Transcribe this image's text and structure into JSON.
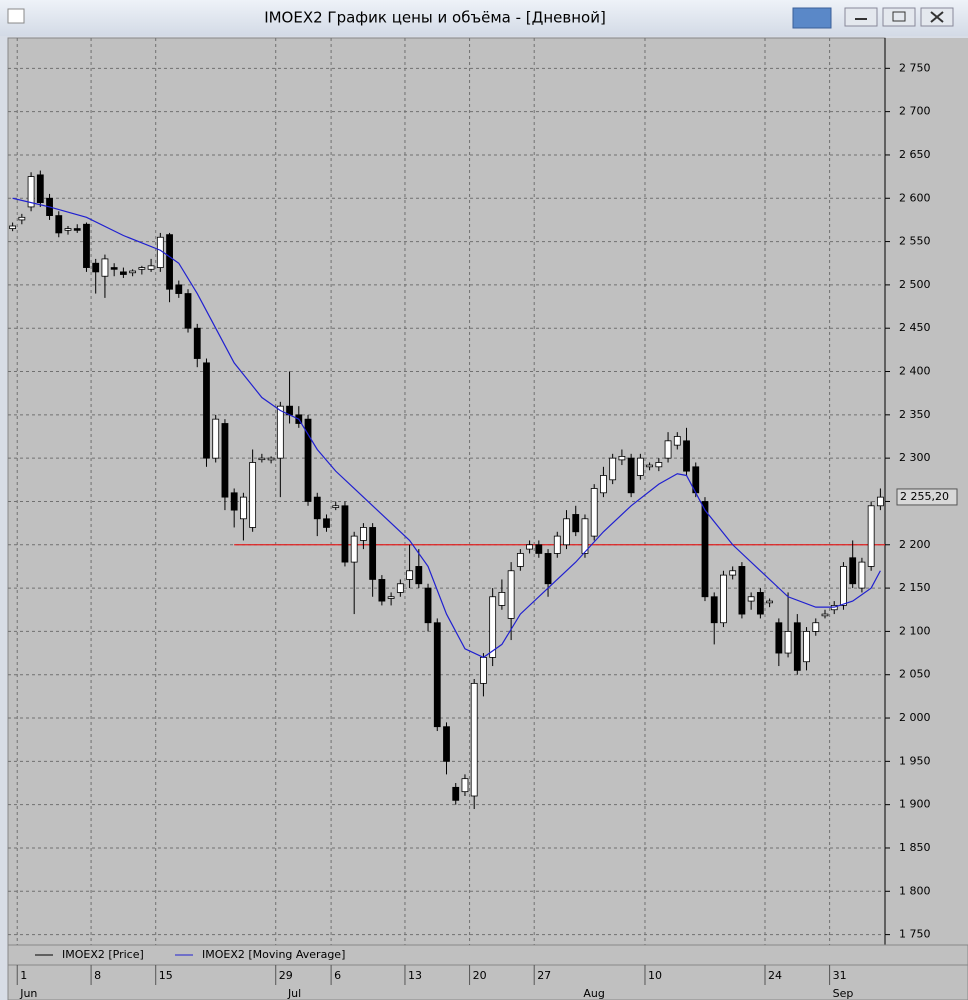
{
  "window": {
    "title": "IMOEX2 График цены и объёма - [Дневной]"
  },
  "chart_data": {
    "type": "candlestick",
    "categories": [
      null,
      "1",
      null,
      null,
      null,
      null,
      null,
      null,
      null,
      "8",
      null,
      null,
      null,
      null,
      null,
      null,
      "15",
      null,
      null,
      null,
      null,
      null,
      null,
      null,
      null,
      null,
      null,
      null,
      null,
      "29",
      null,
      null,
      null,
      null,
      null,
      "6",
      null,
      null,
      null,
      null,
      null,
      null,
      null,
      "13",
      null,
      null,
      null,
      null,
      null,
      null,
      "20",
      null,
      null,
      null,
      null,
      null,
      null,
      "27",
      null,
      null,
      null,
      null,
      null,
      null,
      null,
      null,
      null,
      null,
      null,
      "10",
      null,
      null,
      null,
      null,
      null,
      null,
      null,
      null,
      null,
      null,
      null,
      null,
      "24",
      null,
      null,
      null,
      null,
      null,
      null,
      "31",
      null,
      null,
      null,
      null,
      null
    ],
    "months": [
      null,
      "Jun",
      null,
      null,
      null,
      null,
      null,
      null,
      null,
      null,
      null,
      null,
      null,
      null,
      null,
      null,
      null,
      null,
      null,
      null,
      null,
      null,
      null,
      null,
      null,
      null,
      null,
      null,
      null,
      null,
      "Jul",
      null,
      null,
      null,
      null,
      null,
      null,
      null,
      null,
      null,
      null,
      null,
      null,
      null,
      null,
      null,
      null,
      null,
      null,
      null,
      null,
      null,
      null,
      null,
      null,
      null,
      null,
      null,
      null,
      null,
      null,
      null,
      "Aug",
      null,
      null,
      null,
      null,
      null,
      null,
      null,
      null,
      null,
      null,
      null,
      null,
      null,
      null,
      null,
      null,
      null,
      null,
      null,
      null,
      null,
      null,
      null,
      null,
      null,
      null,
      "Sep",
      null,
      null,
      null,
      null,
      null
    ],
    "open": [
      2565,
      2575,
      2590,
      2627,
      2600,
      2580,
      2563,
      2565,
      2570,
      2525,
      2510,
      2520,
      2515,
      2514,
      2518,
      2518,
      2520,
      2558,
      2500,
      2490,
      2450,
      2410,
      2300,
      2340,
      2260,
      2230,
      2220,
      2300,
      2298,
      2300,
      2360,
      2350,
      2345,
      2255,
      2230,
      2243,
      2245,
      2180,
      2205,
      2220,
      2160,
      2138,
      2145,
      2160,
      2175,
      2150,
      2110,
      1990,
      1920,
      1915,
      1910,
      2040,
      2070,
      2130,
      2115,
      2175,
      2195,
      2200,
      2190,
      2190,
      2200,
      2235,
      2190,
      2210,
      2260,
      2275,
      2298,
      2300,
      2280,
      2290,
      2290,
      2300,
      2315,
      2320,
      2290,
      2250,
      2140,
      2110,
      2165,
      2175,
      2135,
      2145,
      2133,
      2110,
      2075,
      2110,
      2065,
      2100,
      2118,
      2125,
      2130,
      2185,
      2150,
      2175,
      2245
    ],
    "high": [
      2572,
      2582,
      2630,
      2632,
      2605,
      2585,
      2568,
      2570,
      2572,
      2530,
      2535,
      2525,
      2520,
      2518,
      2522,
      2530,
      2560,
      2560,
      2505,
      2495,
      2455,
      2415,
      2350,
      2345,
      2265,
      2260,
      2310,
      2305,
      2302,
      2365,
      2400,
      2360,
      2350,
      2260,
      2235,
      2250,
      2250,
      2215,
      2225,
      2225,
      2165,
      2145,
      2160,
      2200,
      2195,
      2155,
      2115,
      1995,
      1925,
      1935,
      2045,
      2075,
      2150,
      2160,
      2180,
      2195,
      2205,
      2205,
      2195,
      2215,
      2240,
      2245,
      2235,
      2270,
      2290,
      2305,
      2310,
      2305,
      2305,
      2295,
      2300,
      2330,
      2330,
      2335,
      2295,
      2255,
      2145,
      2170,
      2175,
      2180,
      2145,
      2150,
      2138,
      2115,
      2145,
      2120,
      2105,
      2115,
      2125,
      2135,
      2180,
      2205,
      2185,
      2250,
      2265
    ],
    "low": [
      2562,
      2570,
      2585,
      2590,
      2575,
      2555,
      2558,
      2560,
      2515,
      2490,
      2485,
      2510,
      2508,
      2510,
      2512,
      2515,
      2515,
      2480,
      2485,
      2445,
      2405,
      2290,
      2295,
      2240,
      2220,
      2205,
      2215,
      2295,
      2294,
      2255,
      2340,
      2335,
      2245,
      2210,
      2215,
      2240,
      2175,
      2120,
      2195,
      2140,
      2130,
      2130,
      2140,
      2150,
      2150,
      2100,
      1985,
      1935,
      1900,
      1910,
      1895,
      2025,
      2060,
      2125,
      2090,
      2170,
      2190,
      2185,
      2140,
      2185,
      2195,
      2210,
      2185,
      2205,
      2255,
      2270,
      2292,
      2255,
      2275,
      2286,
      2285,
      2295,
      2310,
      2280,
      2255,
      2135,
      2085,
      2105,
      2160,
      2115,
      2125,
      2115,
      2128,
      2060,
      2070,
      2050,
      2055,
      2095,
      2115,
      2120,
      2125,
      2150,
      2145,
      2170,
      2240
    ],
    "close": [
      2568,
      2578,
      2625,
      2595,
      2580,
      2560,
      2565,
      2563,
      2520,
      2515,
      2530,
      2518,
      2512,
      2516,
      2520,
      2522,
      2555,
      2495,
      2490,
      2450,
      2415,
      2300,
      2345,
      2255,
      2240,
      2255,
      2295,
      2300,
      2300,
      2360,
      2350,
      2340,
      2250,
      2230,
      2220,
      2245,
      2180,
      2210,
      2220,
      2160,
      2135,
      2140,
      2155,
      2170,
      2155,
      2110,
      1990,
      1950,
      1905,
      1930,
      2040,
      2070,
      2140,
      2145,
      2170,
      2190,
      2200,
      2190,
      2155,
      2210,
      2230,
      2215,
      2230,
      2265,
      2280,
      2300,
      2302,
      2260,
      2300,
      2292,
      2295,
      2320,
      2325,
      2285,
      2260,
      2140,
      2110,
      2165,
      2170,
      2120,
      2140,
      2120,
      2135,
      2075,
      2100,
      2055,
      2100,
      2110,
      2120,
      2130,
      2175,
      2155,
      2180,
      2245,
      2255
    ],
    "moving_average": {
      "x": [
        0,
        4,
        8,
        12,
        16,
        18,
        20,
        22,
        24,
        27,
        29,
        31,
        33,
        35,
        37,
        40,
        43,
        45,
        47,
        49,
        51,
        53,
        55,
        58,
        61,
        64,
        67,
        70,
        72,
        73,
        75,
        78,
        81,
        84,
        87,
        89,
        91,
        93,
        94
      ],
      "values": [
        2600,
        2590,
        2578,
        2557,
        2540,
        2525,
        2490,
        2450,
        2410,
        2370,
        2355,
        2345,
        2310,
        2285,
        2265,
        2235,
        2205,
        2175,
        2120,
        2080,
        2070,
        2085,
        2120,
        2150,
        2180,
        2215,
        2245,
        2270,
        2282,
        2280,
        2240,
        2200,
        2170,
        2140,
        2128,
        2128,
        2135,
        2150,
        2170
      ],
      "color": "#2020d0"
    },
    "legend": [
      "IMOEX2 [Price]",
      "IMOEX2 [Moving Average]"
    ],
    "hline": {
      "value": 2200,
      "from": 24,
      "color": "#e02020"
    },
    "last_price": {
      "value": 2255.2,
      "label": "2 255,20"
    },
    "ylim": [
      1738,
      2785
    ],
    "yticks": [
      {
        "value": 1750,
        "label": "1 750"
      },
      {
        "value": 1800,
        "label": "1 800"
      },
      {
        "value": 1850,
        "label": "1 850"
      },
      {
        "value": 1900,
        "label": "1 900"
      },
      {
        "value": 1950,
        "label": "1 950"
      },
      {
        "value": 2000,
        "label": "2 000"
      },
      {
        "value": 2050,
        "label": "2 050"
      },
      {
        "value": 2100,
        "label": "2 100"
      },
      {
        "value": 2150,
        "label": "2 150"
      },
      {
        "value": 2200,
        "label": "2 200"
      },
      {
        "value": 2250,
        "label": "2 250"
      },
      {
        "value": 2300,
        "label": "2 300"
      },
      {
        "value": 2350,
        "label": "2 350"
      },
      {
        "value": 2400,
        "label": "2 400"
      },
      {
        "value": 2450,
        "label": "2 450"
      },
      {
        "value": 2500,
        "label": "2 500"
      },
      {
        "value": 2550,
        "label": "2 550"
      },
      {
        "value": 2600,
        "label": "2 600"
      },
      {
        "value": 2650,
        "label": "2 650"
      },
      {
        "value": 2700,
        "label": "2 700"
      },
      {
        "value": 2750,
        "label": "2 750"
      }
    ],
    "grid": true
  }
}
